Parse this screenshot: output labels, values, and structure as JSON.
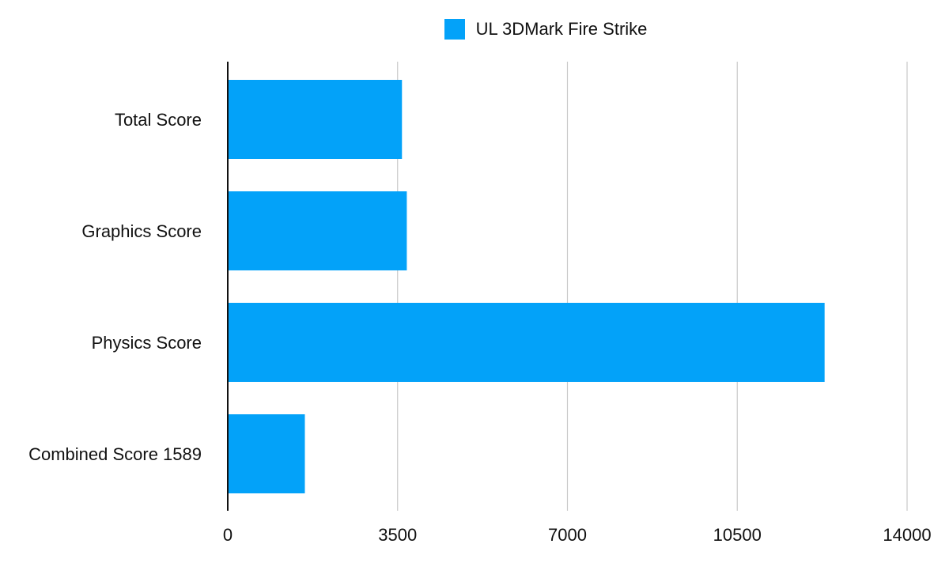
{
  "chart_data": {
    "type": "bar",
    "orientation": "horizontal",
    "categories": [
      "Total Score",
      "Graphics Score",
      "Physics Score",
      "Combined Score 1589"
    ],
    "series": [
      {
        "name": "UL 3DMark Fire Strike",
        "values": [
          3590,
          3690,
          12300,
          1589
        ],
        "color": "#03A2F9"
      }
    ],
    "xlim": [
      0,
      14000
    ],
    "xticks": [
      0,
      3500,
      7000,
      10500,
      14000
    ],
    "grid": true,
    "legend_position": "top"
  }
}
